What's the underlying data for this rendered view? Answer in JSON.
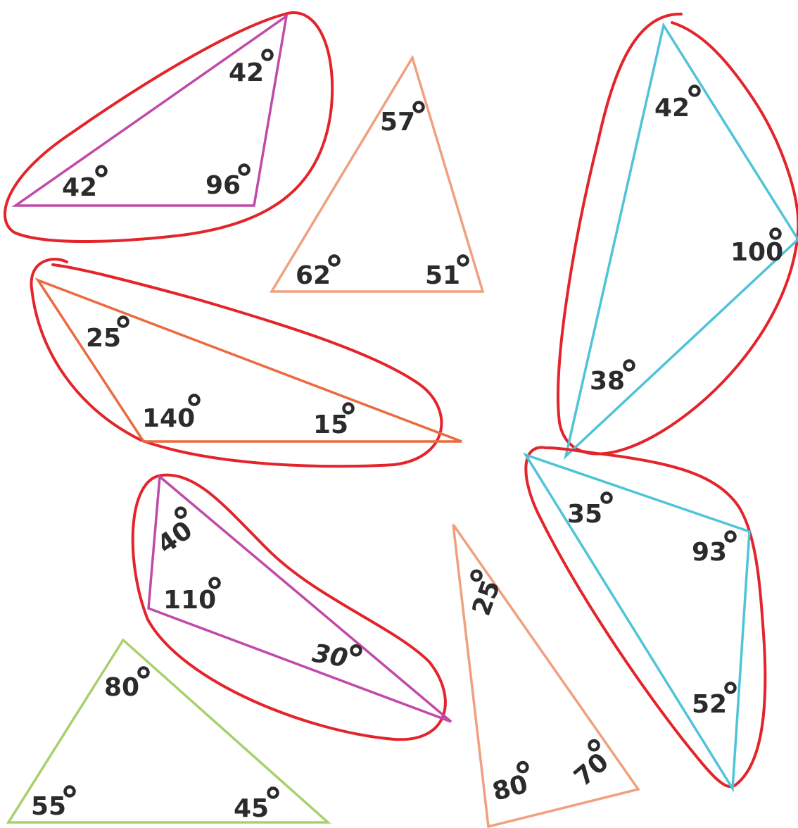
{
  "colors": {
    "magenta": "#c04aa8",
    "salmon": "#f0a07e",
    "orange": "#ec6a3f",
    "cyan": "#4ec4d8",
    "green": "#a8d06c",
    "circle_red": "#e3242b",
    "text": "#2b2b2b"
  },
  "triangles": [
    {
      "id": "t1",
      "color": "magenta",
      "circled": true,
      "angles": [
        "42",
        "42",
        "96"
      ]
    },
    {
      "id": "t2",
      "color": "salmon",
      "circled": false,
      "angles": [
        "57",
        "62",
        "51"
      ]
    },
    {
      "id": "t3",
      "color": "orange",
      "circled": true,
      "angles": [
        "25",
        "140",
        "15"
      ]
    },
    {
      "id": "t4",
      "color": "cyan",
      "circled": true,
      "angles": [
        "42",
        "100",
        "38"
      ]
    },
    {
      "id": "t5",
      "color": "magenta",
      "circled": true,
      "angles": [
        "40",
        "110",
        "30"
      ]
    },
    {
      "id": "t6",
      "color": "salmon",
      "circled": false,
      "angles": [
        "25",
        "80",
        "70"
      ]
    },
    {
      "id": "t7",
      "color": "cyan",
      "circled": true,
      "angles": [
        "35",
        "93",
        "52"
      ]
    },
    {
      "id": "t8",
      "color": "green",
      "circled": false,
      "angles": [
        "80",
        "55",
        "45"
      ]
    }
  ]
}
